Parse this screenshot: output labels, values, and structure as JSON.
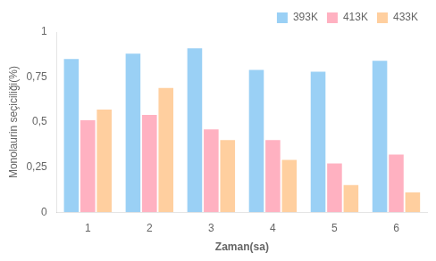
{
  "chart_data": {
    "type": "bar",
    "xlabel": "Zaman(sa)",
    "ylabel": "Monolaurin seçiciliği(%)",
    "categories": [
      1,
      2,
      3,
      4,
      5,
      6
    ],
    "series": [
      {
        "name": "393K",
        "values": [
          0.85,
          0.88,
          0.91,
          0.79,
          0.78,
          0.84
        ]
      },
      {
        "name": "413K",
        "values": [
          0.51,
          0.54,
          0.46,
          0.4,
          0.27,
          0.32
        ]
      },
      {
        "name": "433K",
        "values": [
          0.57,
          0.69,
          0.4,
          0.29,
          0.15,
          0.11
        ]
      }
    ],
    "ylim": [
      0,
      1.0
    ],
    "yticks": [
      0,
      {
        "value": 0.25,
        "label": "0,25"
      },
      {
        "value": 0.5,
        "label": "0,5"
      },
      {
        "value": 0.75,
        "label": "0,75"
      },
      1
    ],
    "grid": false,
    "legend": "upper right"
  }
}
